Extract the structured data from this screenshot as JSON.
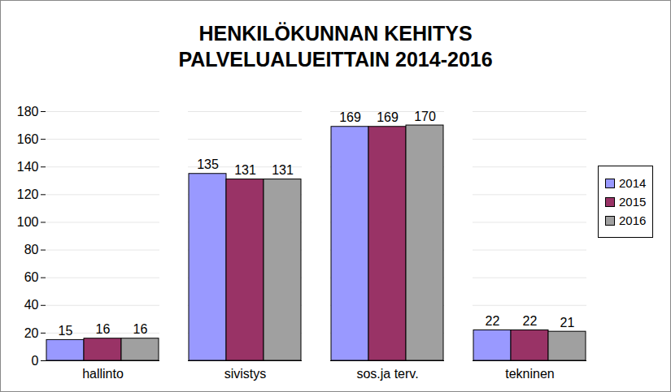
{
  "chart_data": {
    "type": "bar",
    "title": "HENKILÖKUNNAN KEHITYS\nPALVELUALUEITTAIN 2014-2016",
    "categories": [
      "hallinto",
      "sivistys",
      "sos.ja terv.",
      "tekninen"
    ],
    "series": [
      {
        "name": "2014",
        "color": "#9999ff",
        "values": [
          15,
          135,
          169,
          22
        ]
      },
      {
        "name": "2015",
        "color": "#993366",
        "values": [
          16,
          131,
          169,
          22
        ]
      },
      {
        "name": "2016",
        "color": "#a0a0a0",
        "values": [
          16,
          131,
          170,
          21
        ]
      }
    ],
    "ylim": [
      0,
      180
    ],
    "yticks": [
      0,
      20,
      40,
      60,
      80,
      100,
      120,
      140,
      160,
      180
    ],
    "grid": true,
    "legend": "right",
    "data_labels": true
  }
}
